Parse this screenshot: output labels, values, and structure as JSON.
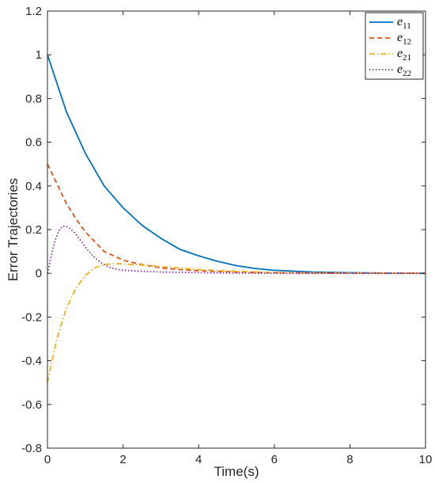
{
  "chart_data": {
    "type": "line",
    "title": "",
    "xlabel": "Time(s)",
    "ylabel": "Error Trajectories",
    "xlim": [
      0,
      10
    ],
    "ylim": [
      -0.8,
      1.2
    ],
    "xticks": [
      0,
      2,
      4,
      6,
      8,
      10
    ],
    "xtick_labels": [
      "0",
      "2",
      "4",
      "6",
      "8",
      "10"
    ],
    "yticks": [
      -0.8,
      -0.6,
      -0.4,
      -0.2,
      0,
      0.2,
      0.4,
      0.6,
      0.8,
      1,
      1.2
    ],
    "ytick_labels": [
      "-0.8",
      "-0.6",
      "-0.4",
      "-0.2",
      "0",
      "0.2",
      "0.4",
      "0.6",
      "0.8",
      "1",
      "1.2"
    ],
    "grid": false,
    "legend_position": "top-right",
    "series": [
      {
        "name": "e11",
        "name_base": "e",
        "name_sub": "11",
        "color": "#0072BD",
        "dash": "solid",
        "x": [
          0,
          0.5,
          1,
          1.5,
          2,
          2.5,
          3,
          3.5,
          4,
          4.5,
          5,
          5.5,
          6,
          7,
          8,
          9,
          10
        ],
        "y": [
          1,
          0.74,
          0.55,
          0.4,
          0.3,
          0.22,
          0.16,
          0.11,
          0.08,
          0.055,
          0.035,
          0.022,
          0.014,
          0.006,
          0.003,
          0.001,
          0
        ]
      },
      {
        "name": "e12",
        "name_base": "e",
        "name_sub": "12",
        "color": "#D95319",
        "dash": "dashed",
        "x": [
          0,
          0.25,
          0.5,
          0.75,
          1,
          1.5,
          2,
          2.5,
          3,
          3.5,
          4,
          5,
          6,
          7,
          8,
          10
        ],
        "y": [
          0.5,
          0.41,
          0.32,
          0.25,
          0.19,
          0.1,
          0.06,
          0.04,
          0.025,
          0.017,
          0.012,
          0.006,
          0.003,
          0.001,
          0,
          0
        ]
      },
      {
        "name": "e21",
        "name_base": "e",
        "name_sub": "21",
        "color": "#EDB120",
        "dash": "dashdot",
        "x": [
          0,
          0.25,
          0.5,
          0.75,
          1,
          1.25,
          1.5,
          1.75,
          2,
          2.5,
          3,
          3.5,
          4,
          5,
          6,
          7,
          8,
          10
        ],
        "y": [
          -0.5,
          -0.3,
          -0.16,
          -0.07,
          -0.01,
          0.025,
          0.04,
          0.044,
          0.043,
          0.038,
          0.031,
          0.024,
          0.017,
          0.009,
          0.004,
          0.002,
          0.001,
          0
        ]
      },
      {
        "name": "e22",
        "name_base": "e",
        "name_sub": "22",
        "color": "#7E2F8E",
        "dash": "dotted",
        "x": [
          0,
          0.1,
          0.2,
          0.3,
          0.4,
          0.5,
          0.6,
          0.75,
          0.9,
          1,
          1.2,
          1.4,
          1.6,
          1.8,
          2,
          2.5,
          3,
          4,
          5,
          6,
          8,
          10
        ],
        "y": [
          0,
          0.08,
          0.15,
          0.195,
          0.215,
          0.215,
          0.205,
          0.18,
          0.145,
          0.12,
          0.08,
          0.05,
          0.03,
          0.02,
          0.014,
          0.009,
          0.006,
          0.003,
          0.001,
          0,
          0,
          0
        ]
      }
    ]
  }
}
